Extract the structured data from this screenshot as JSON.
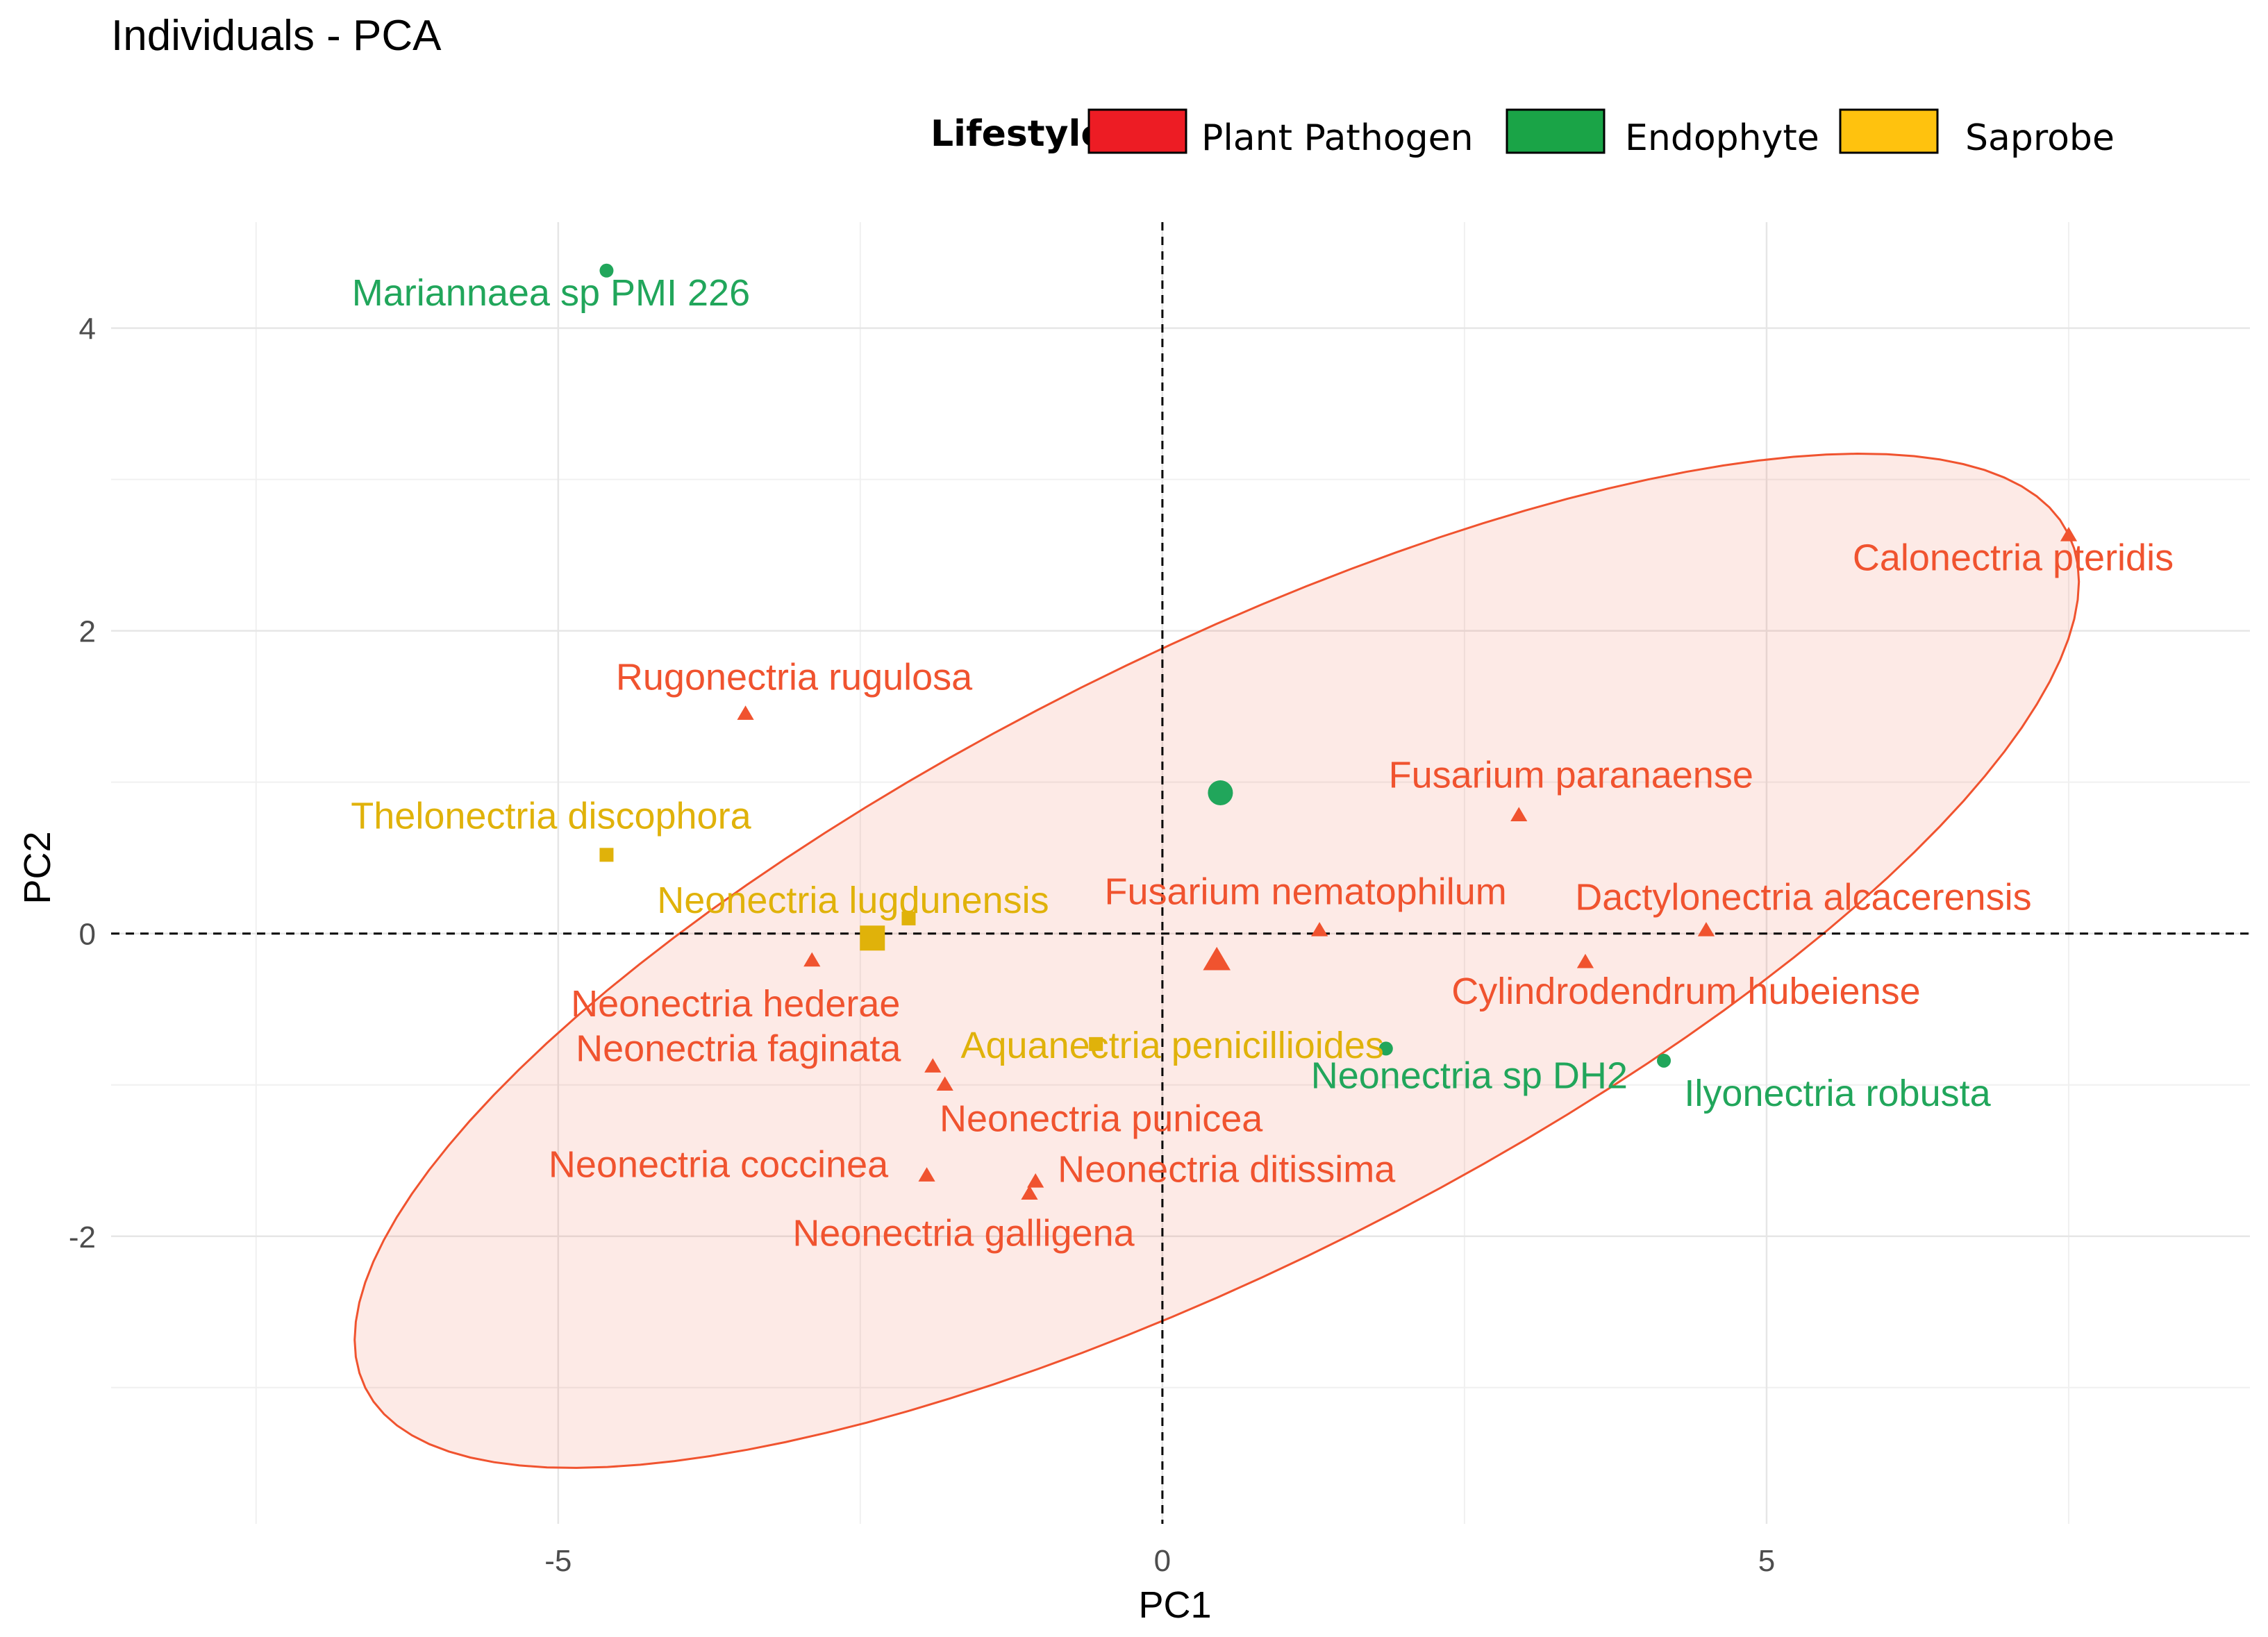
{
  "chart_data": {
    "type": "scatter",
    "title": "Individuals - PCA",
    "xlabel": "PC1",
    "ylabel": "PC2",
    "xlim": [
      -8.7,
      9.0
    ],
    "ylim": [
      -3.9,
      4.7
    ],
    "x_ticks": [
      -5,
      0,
      5
    ],
    "y_ticks": [
      -2,
      0,
      2,
      4
    ],
    "grid": true,
    "legend_title": "Lifestyle",
    "legend_position": "top-right",
    "legend": [
      {
        "name": "Plant Pathogen",
        "color": "#ed1c24"
      },
      {
        "name": "Endophyte",
        "color": "#1aa447"
      },
      {
        "name": "Saprobe",
        "color": "#ffc20e"
      }
    ],
    "group_colors": {
      "Plant Pathogen": "#f0532f",
      "Endophyte": "#21a65b",
      "Saprobe": "#e0b20a"
    },
    "points": [
      {
        "name": "Mariannaea sp PMI 226",
        "x": -4.6,
        "y": 4.38,
        "group": "Endophyte"
      },
      {
        "name": "Calonectria pteridis",
        "x": 7.5,
        "y": 2.63,
        "group": "Plant Pathogen"
      },
      {
        "name": "Rugonectria rugulosa",
        "x": -3.45,
        "y": 1.45,
        "group": "Plant Pathogen"
      },
      {
        "name": "Fusarium paranaense",
        "x": 2.95,
        "y": 0.78,
        "group": "Plant Pathogen"
      },
      {
        "name": "Thelonectria discophora",
        "x": -4.6,
        "y": 0.52,
        "group": "Saprobe"
      },
      {
        "name": "Neonectria lugdunensis",
        "x": -2.1,
        "y": 0.1,
        "group": "Saprobe"
      },
      {
        "name": "Fusarium nematophilum",
        "x": 1.3,
        "y": 0.02,
        "group": "Plant Pathogen"
      },
      {
        "name": "Dactylonectria alcacerensis",
        "x": 4.5,
        "y": 0.02,
        "group": "Plant Pathogen"
      },
      {
        "name": "Neonectria hederae",
        "x": -2.9,
        "y": -0.18,
        "group": "Plant Pathogen"
      },
      {
        "name": "Cylindrodendrum hubeiense",
        "x": 3.5,
        "y": -0.19,
        "group": "Plant Pathogen"
      },
      {
        "name": "Aquanectria penicillioides",
        "x": -0.55,
        "y": -0.73,
        "group": "Saprobe"
      },
      {
        "name": "Neonectria sp DH2",
        "x": 1.85,
        "y": -0.76,
        "group": "Endophyte"
      },
      {
        "name": "Neonectria faginata",
        "x": -1.9,
        "y": -0.88,
        "group": "Plant Pathogen"
      },
      {
        "name": "Ilyonectria robusta",
        "x": 4.15,
        "y": -0.84,
        "group": "Endophyte"
      },
      {
        "name": "Neonectria punicea",
        "x": -1.8,
        "y": -1.0,
        "group": "Plant Pathogen"
      },
      {
        "name": "Neonectria coccinea",
        "x": -1.95,
        "y": -1.6,
        "group": "Plant Pathogen"
      },
      {
        "name": "Neonectria ditissima",
        "x": -1.05,
        "y": -1.64,
        "group": "Plant Pathogen"
      },
      {
        "name": "Neonectria galligena",
        "x": -1.1,
        "y": -1.72,
        "group": "Plant Pathogen"
      }
    ],
    "group_means": [
      {
        "group": "Endophyte",
        "x": 0.48,
        "y": 0.93
      },
      {
        "group": "Plant Pathogen",
        "x": 0.45,
        "y": -0.18
      },
      {
        "group": "Saprobe",
        "x": -2.4,
        "y": -0.03
      }
    ],
    "ellipse": {
      "group": "Plant Pathogen",
      "center": [
        0.45,
        -0.18
      ],
      "semi_axes": [
        8.0,
        2.2
      ],
      "angle_deg": 21
    }
  }
}
